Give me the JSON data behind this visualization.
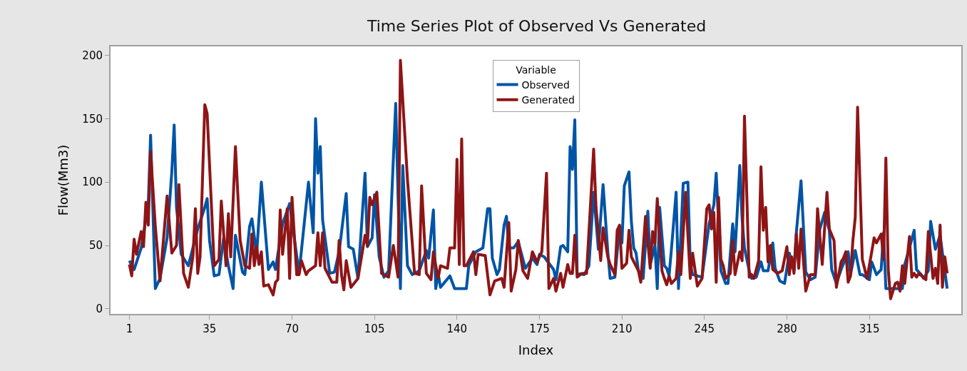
{
  "chart_data": {
    "type": "line",
    "title": "Time Series Plot of Observed Vs Generated",
    "xlabel": "Index",
    "ylabel": "Flow(Mm3)",
    "legend_title": "Variable",
    "legend": "top",
    "marker": "none",
    "line_style": "solid",
    "xlim": [
      -7,
      354
    ],
    "ylim": [
      -4,
      207
    ],
    "xticks": [
      1,
      35,
      70,
      105,
      140,
      175,
      210,
      245,
      280,
      315
    ],
    "yticks": [
      0,
      50,
      100,
      150,
      200
    ],
    "series": [
      {
        "name": "Observed",
        "color": "#0054a6",
        "x": [
          1,
          3,
          6,
          9,
          10,
          12,
          14,
          17,
          19,
          20,
          21,
          23,
          26,
          30,
          33,
          34,
          35,
          37,
          39,
          41,
          43,
          45,
          46,
          49,
          50,
          52,
          53,
          55,
          57,
          60,
          62,
          63,
          66,
          69,
          73,
          77,
          79,
          80,
          81,
          82,
          83,
          86,
          88,
          90,
          93,
          94,
          96,
          98,
          101,
          102,
          104,
          105,
          107,
          109,
          111,
          114,
          116,
          117,
          119,
          121,
          124,
          127,
          128,
          130,
          131,
          132,
          133,
          137,
          139,
          144,
          145,
          148,
          151,
          153,
          154,
          155,
          157,
          158,
          160,
          161,
          162,
          164,
          166,
          169,
          172,
          174,
          175,
          177,
          181,
          182,
          184,
          185,
          187,
          188,
          189,
          190,
          191,
          194,
          196,
          198,
          200,
          202,
          204,
          205,
          207,
          209,
          210,
          211,
          213,
          214,
          215,
          216,
          217,
          219,
          221,
          222,
          224,
          225,
          226,
          228,
          229,
          230,
          231,
          233,
          234,
          236,
          238,
          239,
          240,
          244,
          247,
          249,
          250,
          252,
          254,
          255,
          257,
          258,
          260,
          261,
          262,
          264,
          265,
          267,
          269,
          270,
          272,
          274,
          275,
          277,
          279,
          281,
          283,
          284,
          286,
          288,
          290,
          292,
          294,
          296,
          298,
          299,
          301,
          303,
          306,
          307,
          309,
          311,
          312,
          315,
          316,
          318,
          320,
          321,
          322,
          329,
          330,
          332,
          334,
          335,
          337,
          338,
          340,
          341,
          343,
          345,
          348
        ],
        "values": [
          38,
          31,
          48,
          82,
          137,
          16,
          24,
          56,
          108,
          145,
          80,
          43,
          34,
          63,
          80,
          87,
          54,
          26,
          27,
          56,
          34,
          16,
          58,
          29,
          27,
          65,
          71,
          43,
          100,
          31,
          37,
          31,
          67,
          83,
          28,
          100,
          60,
          150,
          107,
          128,
          70,
          28,
          29,
          45,
          91,
          49,
          47,
          24,
          107,
          49,
          56,
          90,
          41,
          25,
          30,
          162,
          16,
          113,
          34,
          27,
          30,
          46,
          40,
          78,
          16,
          28,
          17,
          26,
          16,
          16,
          34,
          45,
          48,
          79,
          79,
          40,
          27,
          31,
          66,
          73,
          48,
          48,
          53,
          32,
          40,
          35,
          43,
          41,
          31,
          23,
          49,
          50,
          45,
          128,
          110,
          149,
          28,
          27,
          34,
          92,
          47,
          98,
          45,
          24,
          25,
          65,
          52,
          97,
          108,
          69,
          48,
          44,
          30,
          24,
          77,
          35,
          50,
          16,
          80,
          34,
          32,
          26,
          47,
          92,
          16,
          99,
          100,
          35,
          27,
          25,
          67,
          82,
          107,
          30,
          20,
          20,
          67,
          45,
          113,
          71,
          48,
          30,
          24,
          25,
          37,
          30,
          30,
          52,
          32,
          22,
          20,
          44,
          30,
          60,
          101,
          29,
          23,
          25,
          63,
          76,
          62,
          31,
          20,
          31,
          45,
          27,
          46,
          27,
          27,
          23,
          37,
          27,
          31,
          60,
          16,
          16,
          35,
          48,
          62,
          31,
          27,
          24,
          30,
          69,
          47,
          58,
          16
        ]
      },
      {
        "name": "Generated",
        "color": "#8e1516",
        "x": [
          1,
          2,
          3,
          4,
          6,
          7,
          8,
          9,
          10,
          12,
          14,
          17,
          19,
          21,
          22,
          24,
          26,
          28,
          29,
          30,
          31,
          33,
          34,
          37,
          39,
          40,
          42,
          43,
          44,
          46,
          48,
          50,
          52,
          53,
          54,
          55,
          56,
          57,
          58,
          60,
          62,
          63,
          64,
          65,
          66,
          68,
          69,
          70,
          72,
          73,
          74,
          76,
          77,
          80,
          81,
          82,
          83,
          84,
          87,
          89,
          90,
          91,
          92,
          93,
          95,
          98,
          101,
          102,
          103,
          104,
          106,
          108,
          111,
          113,
          115,
          116,
          119,
          122,
          124,
          125,
          127,
          129,
          130,
          132,
          133,
          136,
          137,
          139,
          140,
          141,
          142,
          143,
          144,
          147,
          148,
          149,
          152,
          154,
          156,
          159,
          160,
          162,
          163,
          165,
          166,
          168,
          170,
          172,
          174,
          176,
          178,
          179,
          181,
          182,
          184,
          185,
          187,
          188,
          189,
          190,
          191,
          193,
          195,
          198,
          199,
          201,
          202,
          204,
          205,
          207,
          208,
          209,
          210,
          212,
          213,
          214,
          217,
          218,
          220,
          222,
          223,
          224,
          225,
          227,
          228,
          229,
          230,
          231,
          233,
          234,
          235,
          237,
          239,
          240,
          242,
          244,
          246,
          247,
          248,
          249,
          250,
          251,
          252,
          253,
          254,
          256,
          257,
          258,
          260,
          261,
          262,
          264,
          265,
          266,
          268,
          269,
          270,
          271,
          272,
          273,
          274,
          276,
          278,
          280,
          281,
          282,
          283,
          284,
          285,
          286,
          288,
          290,
          292,
          293,
          295,
          297,
          298,
          300,
          301,
          303,
          304,
          305,
          306,
          307,
          308,
          309,
          310,
          312,
          314,
          316,
          317,
          318,
          320,
          321,
          322,
          323,
          324,
          326,
          327,
          328,
          329,
          330,
          332,
          333,
          334,
          335,
          336,
          339,
          340,
          342,
          343,
          344,
          345,
          346,
          347,
          348
        ],
        "values": [
          35,
          26,
          55,
          43,
          61,
          49,
          84,
          66,
          124,
          65,
          22,
          89,
          44,
          50,
          98,
          28,
          17,
          42,
          79,
          28,
          41,
          161,
          154,
          34,
          39,
          85,
          34,
          75,
          41,
          128,
          54,
          34,
          32,
          59,
          34,
          49,
          35,
          45,
          18,
          19,
          11,
          21,
          23,
          78,
          43,
          79,
          24,
          88,
          27,
          27,
          38,
          27,
          30,
          34,
          60,
          34,
          60,
          32,
          21,
          21,
          54,
          27,
          15,
          38,
          17,
          24,
          58,
          50,
          88,
          82,
          92,
          28,
          25,
          50,
          25,
          196,
          102,
          28,
          27,
          97,
          28,
          23,
          45,
          24,
          34,
          32,
          48,
          48,
          118,
          35,
          134,
          34,
          34,
          45,
          27,
          43,
          42,
          11,
          22,
          24,
          17,
          68,
          14,
          31,
          54,
          30,
          24,
          45,
          37,
          45,
          107,
          16,
          24,
          14,
          28,
          17,
          35,
          28,
          28,
          58,
          25,
          28,
          28,
          126,
          80,
          38,
          64,
          41,
          35,
          27,
          62,
          66,
          32,
          36,
          62,
          41,
          30,
          21,
          73,
          32,
          61,
          51,
          87,
          30,
          24,
          19,
          26,
          20,
          24,
          45,
          27,
          92,
          24,
          44,
          18,
          24,
          79,
          82,
          63,
          76,
          21,
          88,
          39,
          34,
          24,
          28,
          54,
          27,
          45,
          38,
          152,
          25,
          27,
          24,
          38,
          112,
          62,
          80,
          37,
          50,
          31,
          28,
          30,
          49,
          27,
          41,
          28,
          59,
          32,
          63,
          14,
          27,
          27,
          79,
          35,
          92,
          63,
          54,
          17,
          37,
          40,
          45,
          21,
          26,
          54,
          72,
          159,
          39,
          24,
          45,
          56,
          52,
          59,
          39,
          119,
          31,
          8,
          20,
          21,
          14,
          34,
          20,
          57,
          25,
          28,
          25,
          28,
          23,
          61,
          24,
          32,
          20,
          66,
          17,
          41,
          28
        ]
      }
    ]
  }
}
